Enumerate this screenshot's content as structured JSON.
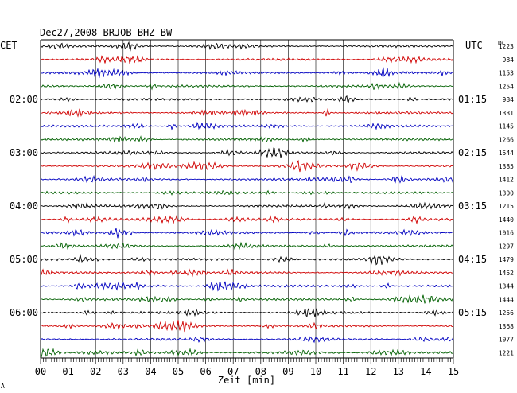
{
  "chart_data": {
    "type": "line",
    "title": "Dec27,2008   BRJOB BHZ BW",
    "left_header": "CET",
    "right_header": "UTC",
    "dc_header": "DC",
    "xlabel": "Zeit [min]",
    "xlim": [
      0,
      15
    ],
    "x_ticks": [
      "00",
      "01",
      "02",
      "03",
      "04",
      "05",
      "06",
      "07",
      "08",
      "09",
      "10",
      "11",
      "12",
      "13",
      "14",
      "15"
    ],
    "trace_colors": [
      "#000000",
      "#d00000",
      "#0000c0",
      "#006000"
    ],
    "hour_labels_left": [
      "02:00",
      "03:00",
      "04:00",
      "05:00",
      "06:00"
    ],
    "hour_labels_right": [
      "01:15",
      "02:15",
      "03:15",
      "04:15",
      "05:15"
    ],
    "dc_values": [
      "1223",
      "984",
      "1153",
      "1254",
      "984",
      "1331",
      "1145",
      "1266",
      "1544",
      "1385",
      "1412",
      "1300",
      "1215",
      "1440",
      "1016",
      "1297",
      "1479",
      "1452",
      "1344",
      "1444",
      "1256",
      "1368",
      "1077",
      "1221"
    ],
    "footer_mark": "A"
  }
}
